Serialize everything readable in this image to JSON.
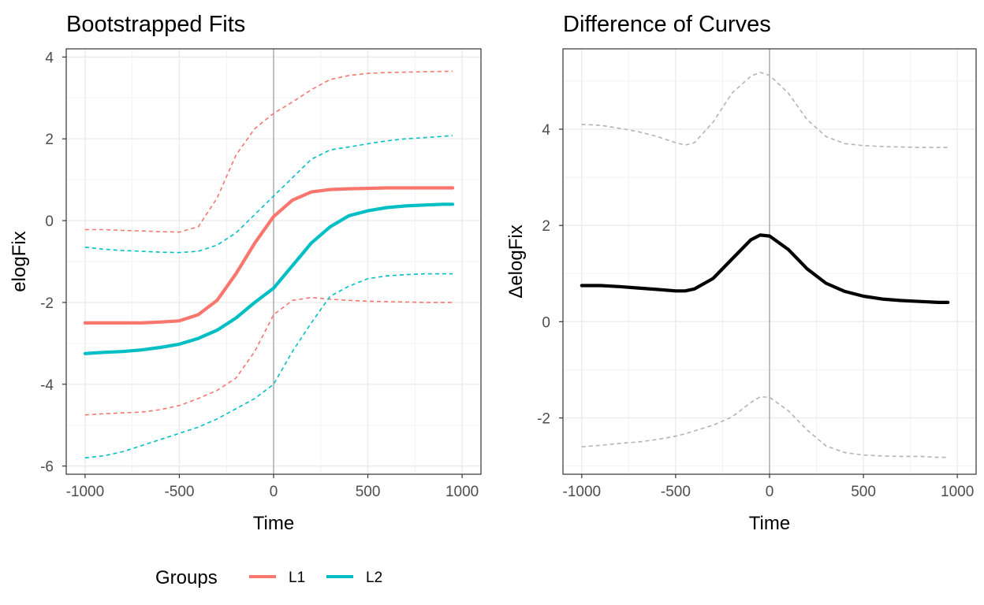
{
  "legend": {
    "title": "Groups",
    "items": [
      {
        "label": "L1",
        "color": "#F8766D"
      },
      {
        "label": "L2",
        "color": "#00BFC4"
      }
    ]
  },
  "chart_data": [
    {
      "type": "line",
      "title": "Bootstrapped Fits",
      "xlabel": "Time",
      "ylabel": "elogFix",
      "xlim": [
        -1000,
        1000
      ],
      "ylim": [
        -6,
        4
      ],
      "xticks": [
        "-1000",
        "-500",
        "0",
        "500",
        "1000"
      ],
      "yticks": [
        "-6",
        "-4",
        "-2",
        "0",
        "2",
        "4"
      ],
      "grid": true,
      "reference_vline": 0,
      "legend_position": "bottom",
      "x": [
        -1000,
        -900,
        -800,
        -700,
        -600,
        -500,
        -400,
        -300,
        -200,
        -100,
        0,
        100,
        200,
        300,
        400,
        500,
        600,
        700,
        800,
        900,
        950
      ],
      "series": [
        {
          "name": "L1",
          "color": "#F8766D",
          "style": "solid",
          "values": [
            -2.5,
            -2.5,
            -2.5,
            -2.5,
            -2.48,
            -2.45,
            -2.3,
            -1.95,
            -1.3,
            -0.55,
            0.1,
            0.5,
            0.7,
            0.76,
            0.78,
            0.79,
            0.8,
            0.8,
            0.8,
            0.8,
            0.8
          ]
        },
        {
          "color": "#F8766D",
          "style": "dashed",
          "values": [
            -0.22,
            -0.22,
            -0.24,
            -0.25,
            -0.27,
            -0.28,
            -0.15,
            0.55,
            1.6,
            2.25,
            2.62,
            2.9,
            3.2,
            3.45,
            3.55,
            3.6,
            3.62,
            3.63,
            3.64,
            3.65,
            3.65
          ]
        },
        {
          "color": "#F8766D",
          "style": "dashed",
          "values": [
            -4.75,
            -4.72,
            -4.7,
            -4.68,
            -4.62,
            -4.52,
            -4.35,
            -4.15,
            -3.85,
            -3.2,
            -2.3,
            -1.95,
            -1.88,
            -1.92,
            -1.95,
            -1.97,
            -1.98,
            -1.99,
            -2.0,
            -2.0,
            -2.0
          ]
        },
        {
          "name": "L2",
          "color": "#00BFC4",
          "style": "solid",
          "values": [
            -3.25,
            -3.22,
            -3.2,
            -3.16,
            -3.1,
            -3.02,
            -2.88,
            -2.68,
            -2.38,
            -2.0,
            -1.65,
            -1.1,
            -0.55,
            -0.15,
            0.12,
            0.24,
            0.32,
            0.36,
            0.38,
            0.4,
            0.4
          ]
        },
        {
          "color": "#00BFC4",
          "style": "dashed",
          "values": [
            -0.65,
            -0.7,
            -0.73,
            -0.75,
            -0.77,
            -0.78,
            -0.75,
            -0.6,
            -0.3,
            0.15,
            0.6,
            1.05,
            1.5,
            1.73,
            1.8,
            1.88,
            1.95,
            2.0,
            2.03,
            2.06,
            2.08
          ]
        },
        {
          "color": "#00BFC4",
          "style": "dashed",
          "values": [
            -5.8,
            -5.75,
            -5.65,
            -5.5,
            -5.35,
            -5.2,
            -5.05,
            -4.85,
            -4.6,
            -4.35,
            -4.0,
            -3.2,
            -2.5,
            -1.85,
            -1.6,
            -1.42,
            -1.35,
            -1.32,
            -1.3,
            -1.3,
            -1.3
          ]
        }
      ]
    },
    {
      "type": "line",
      "title": "Difference of Curves",
      "xlabel": "Time",
      "ylabel": "ΔelogFix",
      "xlim": [
        -1000,
        1000
      ],
      "ylim": [
        -3,
        5.5
      ],
      "xticks": [
        "-1000",
        "-500",
        "0",
        "500",
        "1000"
      ],
      "yticks": [
        "-2",
        "0",
        "2",
        "4"
      ],
      "grid": true,
      "reference_vline": 0,
      "x": [
        -1000,
        -900,
        -800,
        -700,
        -600,
        -500,
        -450,
        -400,
        -300,
        -200,
        -100,
        -50,
        0,
        100,
        200,
        300,
        400,
        500,
        600,
        700,
        800,
        900,
        950
      ],
      "series": [
        {
          "color": "#000000",
          "style": "solid",
          "values": [
            0.75,
            0.75,
            0.73,
            0.7,
            0.67,
            0.64,
            0.64,
            0.68,
            0.9,
            1.3,
            1.7,
            1.8,
            1.78,
            1.5,
            1.1,
            0.8,
            0.63,
            0.53,
            0.47,
            0.44,
            0.42,
            0.4,
            0.4
          ]
        },
        {
          "color": "#b3b3b3",
          "style": "dashed",
          "values": [
            4.1,
            4.08,
            4.02,
            3.95,
            3.85,
            3.72,
            3.67,
            3.72,
            4.15,
            4.75,
            5.1,
            5.18,
            5.12,
            4.75,
            4.2,
            3.85,
            3.7,
            3.66,
            3.64,
            3.63,
            3.62,
            3.62,
            3.62
          ]
        },
        {
          "color": "#b3b3b3",
          "style": "dashed",
          "values": [
            -2.6,
            -2.57,
            -2.53,
            -2.5,
            -2.45,
            -2.38,
            -2.33,
            -2.27,
            -2.15,
            -1.98,
            -1.68,
            -1.56,
            -1.57,
            -1.85,
            -2.25,
            -2.58,
            -2.72,
            -2.77,
            -2.79,
            -2.8,
            -2.8,
            -2.82,
            -2.82
          ]
        }
      ]
    }
  ]
}
